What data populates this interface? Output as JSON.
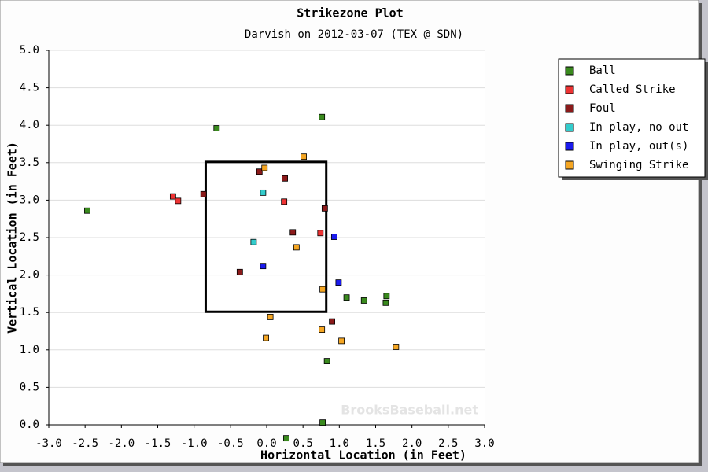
{
  "chart_data": {
    "type": "scatter",
    "title": "Strikezone Plot",
    "subtitle": "Darvish on 2012-03-07 (TEX @ SDN)",
    "x_label": "Horizontal Location (in Feet)",
    "y_label": "Vertical Location (in Feet)",
    "watermark": "BrooksBaseball.net",
    "xlim": [
      -3.0,
      3.0
    ],
    "ylim": [
      0.0,
      5.0
    ],
    "xticks": [
      {
        "value": -3.0,
        "label": "-3.0"
      },
      {
        "value": -2.5,
        "label": "-2.5"
      },
      {
        "value": -2.0,
        "label": "-2.0"
      },
      {
        "value": -1.5,
        "label": "-1.5"
      },
      {
        "value": -1.0,
        "label": "-1.0"
      },
      {
        "value": -0.5,
        "label": "-0.5"
      },
      {
        "value": 0.0,
        "label": "0.0"
      },
      {
        "value": 0.5,
        "label": "0.5"
      },
      {
        "value": 1.0,
        "label": "1.0"
      },
      {
        "value": 1.5,
        "label": "1.5"
      },
      {
        "value": 2.0,
        "label": "2.0"
      },
      {
        "value": 2.5,
        "label": "2.5"
      },
      {
        "value": 3.0,
        "label": "3.0"
      }
    ],
    "yticks": [
      {
        "value": 0.0,
        "label": "0.0"
      },
      {
        "value": 0.5,
        "label": "0.5"
      },
      {
        "value": 1.0,
        "label": "1.0"
      },
      {
        "value": 1.5,
        "label": "1.5"
      },
      {
        "value": 2.0,
        "label": "2.0"
      },
      {
        "value": 2.5,
        "label": "2.5"
      },
      {
        "value": 3.0,
        "label": "3.0"
      },
      {
        "value": 3.5,
        "label": "3.5"
      },
      {
        "value": 4.0,
        "label": "4.0"
      },
      {
        "value": 4.5,
        "label": "4.5"
      },
      {
        "value": 5.0,
        "label": "5.0"
      }
    ],
    "grid": true,
    "strike_zone": {
      "x": [
        -0.84,
        0.82
      ],
      "y": [
        1.51,
        3.51
      ]
    },
    "legend_position": "right",
    "series": [
      {
        "name": "Ball",
        "color": "#3a8a1e",
        "x": [
          -2.47,
          -0.69,
          0.76,
          0.77,
          0.83,
          1.1,
          1.34,
          1.65,
          1.64,
          0.27
        ],
        "y": [
          2.86,
          3.96,
          4.11,
          0.03,
          0.85,
          1.7,
          1.66,
          1.72,
          1.63,
          -0.18
        ]
      },
      {
        "name": "Called Strike",
        "color": "#ee3333",
        "x": [
          -1.29,
          -1.22,
          0.24,
          0.74
        ],
        "y": [
          3.05,
          2.99,
          2.98,
          2.56
        ]
      },
      {
        "name": "Foul",
        "color": "#8b1a1a",
        "x": [
          -0.87,
          -0.1,
          0.25,
          0.8,
          0.36,
          -0.37,
          0.9
        ],
        "y": [
          3.08,
          3.38,
          3.29,
          2.89,
          2.57,
          2.04,
          1.38
        ]
      },
      {
        "name": "In play, no out",
        "color": "#33cccc",
        "x": [
          -0.05,
          -0.18
        ],
        "y": [
          3.1,
          2.44
        ]
      },
      {
        "name": "In play, out(s)",
        "color": "#1a1aee",
        "x": [
          0.93,
          -0.05,
          0.99
        ],
        "y": [
          2.51,
          2.12,
          1.9
        ]
      },
      {
        "name": "Swinging Strike",
        "color": "#f5a623",
        "x": [
          0.51,
          -0.03,
          0.41,
          0.77,
          0.05,
          -0.01,
          0.76,
          1.03,
          1.78
        ],
        "y": [
          3.58,
          3.43,
          2.37,
          1.81,
          1.44,
          1.16,
          1.27,
          1.12,
          1.04
        ]
      }
    ]
  }
}
